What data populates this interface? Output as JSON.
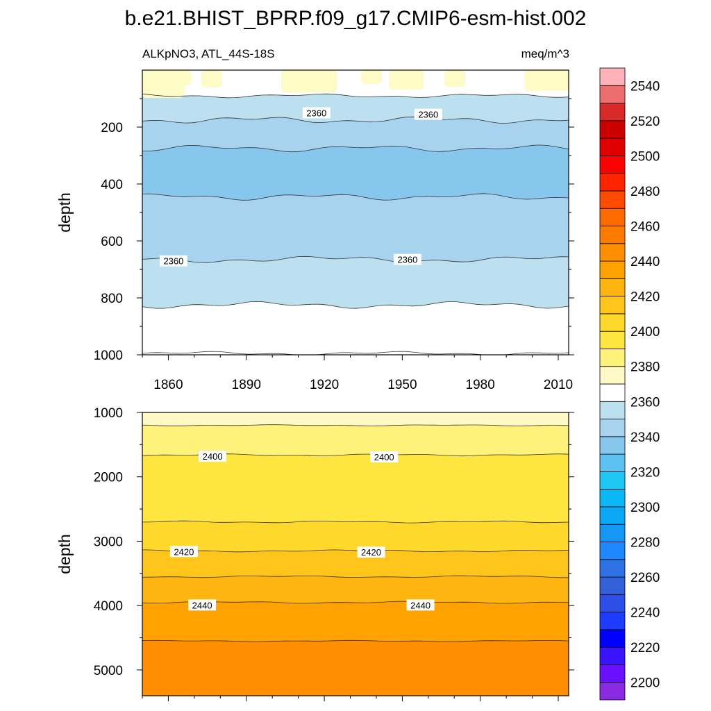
{
  "figure": {
    "title": "b.e21.BHIST_BPRP.f09_g17.CMIP6-esm-hist.002",
    "left_subtitle": "ALKpNO3, ATL_44S-18S",
    "right_subtitle": "meq/m^3"
  },
  "chart_data": [
    {
      "type": "heatmap",
      "panel": "upper",
      "x_range": [
        1850,
        2014
      ],
      "xticks": [
        1860,
        1890,
        1920,
        1950,
        1980,
        2010
      ],
      "xtick_labels": [
        "1860",
        "1890",
        "1920",
        "1950",
        "1980",
        "2010"
      ],
      "ylabel": "depth",
      "ylim": [
        0,
        1000
      ],
      "y_inverted": true,
      "yticks": [
        200,
        400,
        600,
        800,
        1000
      ],
      "ytick_labels": [
        "200",
        "400",
        "600",
        "800",
        "1000"
      ],
      "contour_depths": [
        {
          "level": 2375,
          "depth": 90
        },
        {
          "level": 2365,
          "depth": 175
        },
        {
          "level": 2355,
          "depth": 275
        },
        {
          "level": 2350,
          "depth": 445
        },
        {
          "level": 2355,
          "depth": 665
        },
        {
          "level": 2365,
          "depth": 825
        },
        {
          "level": 2375,
          "depth": 995
        }
      ],
      "contour_labels": [
        {
          "text": "2360",
          "x": 1917,
          "depth": 150
        },
        {
          "text": "2360",
          "x": 1960,
          "depth": 155
        },
        {
          "text": "2360",
          "x": 1862,
          "depth": 670
        },
        {
          "text": "2360",
          "x": 1952,
          "depth": 665
        }
      ]
    },
    {
      "type": "heatmap",
      "panel": "lower",
      "x_range": [
        1850,
        2014
      ],
      "ylabel": "depth",
      "ylim": [
        1000,
        5400
      ],
      "y_inverted": true,
      "yticks": [
        1000,
        2000,
        3000,
        4000,
        5000
      ],
      "ytick_labels": [
        "1000",
        "2000",
        "3000",
        "4000",
        "5000"
      ],
      "contour_depths": [
        {
          "level": 2385,
          "depth": 1200
        },
        {
          "level": 2395,
          "depth": 1660
        },
        {
          "level": 2405,
          "depth": 2700
        },
        {
          "level": 2415,
          "depth": 3150
        },
        {
          "level": 2425,
          "depth": 3550
        },
        {
          "level": 2435,
          "depth": 3950
        },
        {
          "level": 2445,
          "depth": 4550
        }
      ],
      "contour_labels": [
        {
          "text": "2400",
          "x": 1877,
          "depth": 1680
        },
        {
          "text": "2400",
          "x": 1943,
          "depth": 1690
        },
        {
          "text": "2420",
          "x": 1866,
          "depth": 3160
        },
        {
          "text": "2420",
          "x": 1938,
          "depth": 3170
        },
        {
          "text": "2440",
          "x": 1873,
          "depth": 3990
        },
        {
          "text": "2440",
          "x": 1957,
          "depth": 3990
        }
      ]
    }
  ],
  "colorbar": {
    "levels": [
      2200,
      2210,
      2220,
      2230,
      2240,
      2250,
      2260,
      2270,
      2280,
      2290,
      2300,
      2310,
      2320,
      2330,
      2340,
      2350,
      2360,
      2370,
      2380,
      2390,
      2400,
      2410,
      2420,
      2430,
      2440,
      2450,
      2460,
      2470,
      2480,
      2490,
      2500,
      2510,
      2520,
      2530,
      2540,
      2550
    ],
    "colors": [
      "#8a2be2",
      "#6a0fff",
      "#3a14ff",
      "#0000ff",
      "#1e3cff",
      "#2c4fe8",
      "#3160d8",
      "#2f72e6",
      "#1f87ff",
      "#1597f7",
      "#0aa7f5",
      "#0cb7f5",
      "#1ec6f4",
      "#5dc1f2",
      "#88c7ed",
      "#a8d3ef",
      "#bde0f0",
      "#ffffff",
      "#fff9c6",
      "#fff27a",
      "#ffe540",
      "#ffd82c",
      "#ffc51a",
      "#ffb510",
      "#ffa200",
      "#ff8f00",
      "#ff7b00",
      "#ff6a00",
      "#ff4a00",
      "#ff2400",
      "#ff0000",
      "#e00000",
      "#cc0000",
      "#d92a2a",
      "#ec6e6e",
      "#ffb3b8"
    ],
    "tick_labels": [
      "2200",
      "2220",
      "2240",
      "2260",
      "2280",
      "2300",
      "2320",
      "2340",
      "2360",
      "2380",
      "2400",
      "2420",
      "2440",
      "2460",
      "2480",
      "2500",
      "2520",
      "2540"
    ]
  }
}
